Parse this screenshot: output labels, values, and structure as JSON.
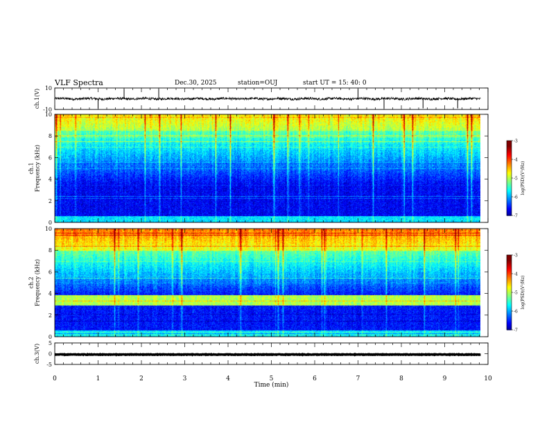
{
  "header": {
    "title": "VLF Spectra",
    "date": "Dec.30, 2025",
    "station": "station=OUJ",
    "start": "start  UT =   15: 40: 0"
  },
  "colors": {
    "colormap": [
      "#00007f",
      "#0000ff",
      "#007fff",
      "#00ffff",
      "#7fff7f",
      "#ffff00",
      "#ff7f00",
      "#ff0000",
      "#ffffff"
    ]
  },
  "chart_data": [
    {
      "type": "line",
      "id": "ch1-waveform",
      "ylabel": "ch.1(V)",
      "ylim": [
        -10,
        10
      ],
      "y_ticks": [
        10,
        -10
      ],
      "xlim": [
        0,
        10
      ],
      "mean_value": 0,
      "spike_times_min": [
        1.0,
        1.6,
        2.4,
        7.0,
        7.6,
        8.5,
        9.3
      ]
    },
    {
      "type": "heatmap",
      "id": "ch1-spectrogram",
      "ylabel": "ch.1\nFrequency (kHz)",
      "ylabel_lines": [
        "ch.1",
        "Frequency (kHz)"
      ],
      "ylim": [
        0,
        10
      ],
      "y_ticks": [
        0,
        2,
        4,
        6,
        8,
        10
      ],
      "xlim": [
        0,
        10
      ],
      "data_end_min": 9.83,
      "colorbar": {
        "label": "log(PSD)(V²/Hz)",
        "range": [
          -7,
          -3
        ],
        "ticks": [
          -3,
          -4,
          -5,
          -6,
          -7
        ]
      }
    },
    {
      "type": "heatmap",
      "id": "ch2-spectrogram",
      "ylabel": "ch.2\nFrequency (kHz)",
      "ylabel_lines": [
        "ch.2",
        "Frequency (kHz)"
      ],
      "ylim": [
        0,
        10
      ],
      "y_ticks": [
        0,
        2,
        4,
        6,
        8,
        10
      ],
      "xlim": [
        0,
        10
      ],
      "data_end_min": 9.83,
      "colorbar": {
        "label": "log(PSD)(V²/Hz)",
        "range": [
          -7,
          -3
        ],
        "ticks": [
          -3,
          -4,
          -5,
          -6,
          -7
        ]
      }
    },
    {
      "type": "line",
      "id": "ch3-waveform",
      "ylabel": "ch.3(V)",
      "ylim": [
        -5,
        5
      ],
      "y_ticks": [
        5,
        0,
        -5
      ],
      "xlim": [
        0,
        10
      ],
      "mean_value": -0.4
    }
  ],
  "x_axis": {
    "label": "Time  (min)",
    "ticks": [
      "0",
      "1",
      "2",
      "3",
      "4",
      "5",
      "6",
      "7",
      "8",
      "9",
      "10"
    ]
  }
}
